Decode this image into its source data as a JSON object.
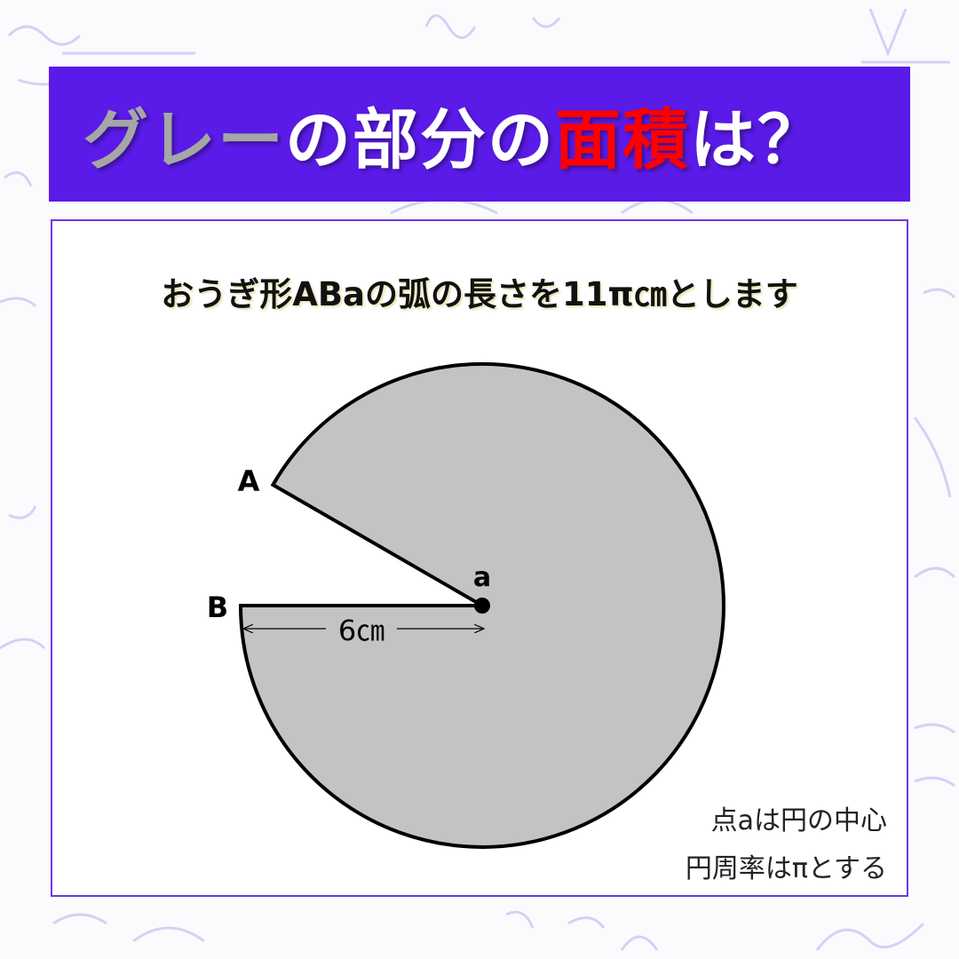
{
  "title": {
    "part1": "グレー",
    "part2": "の部分の",
    "part3": "面積",
    "part4": "は？",
    "colors": {
      "banner": "#5a1be8",
      "gray": "#a6a6a6",
      "white": "#ffffff",
      "red": "#ff0000"
    }
  },
  "problem": {
    "statement": "おうぎ形ABaの弧の長さを11π㎝とします",
    "labels": {
      "A": "A",
      "B": "B",
      "center": "a",
      "radius": "6㎝"
    },
    "notes": [
      "点aは円の中心",
      "円周率はπとする"
    ],
    "fill_color": "#c3c3c3",
    "missing_angle_deg": 30
  }
}
